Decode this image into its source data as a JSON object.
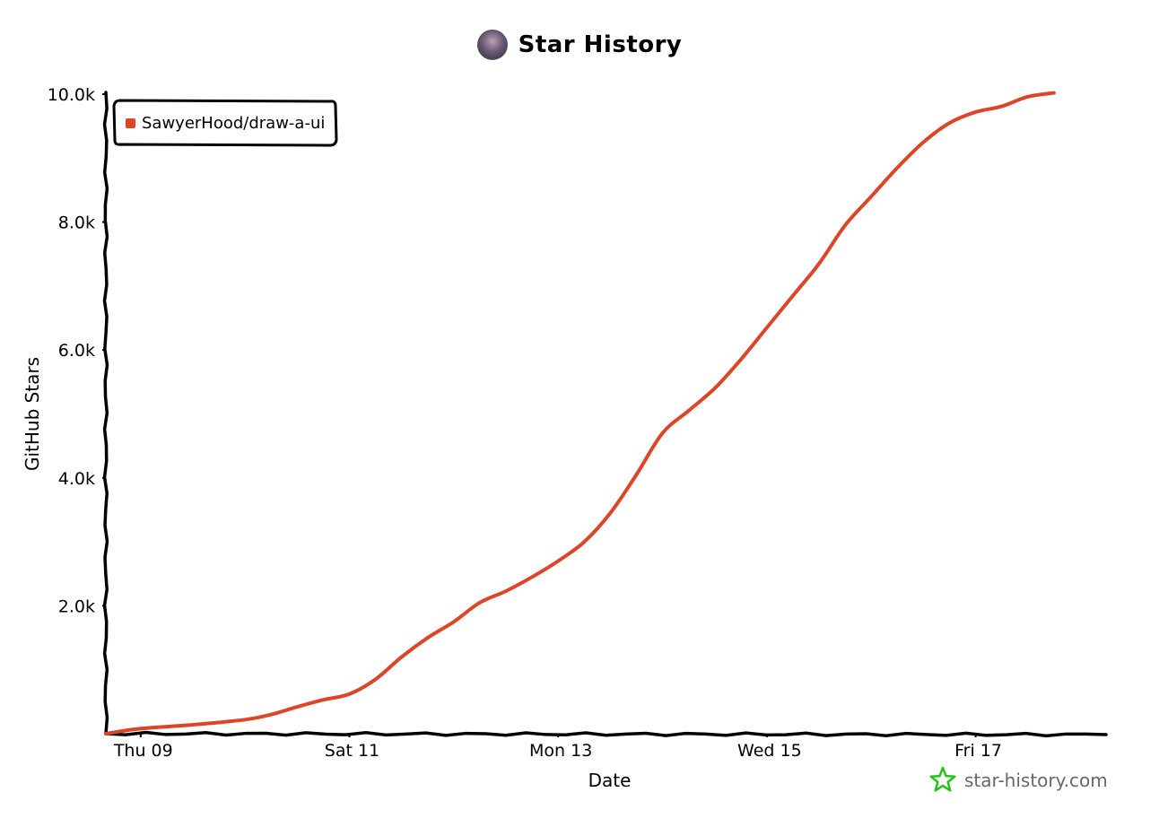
{
  "header": {
    "title": "Star History"
  },
  "colors": {
    "series": "#dd4528",
    "axis": "#000000",
    "watermark_icon": "#22c41a",
    "watermark_text": "#666666"
  },
  "watermark": {
    "text": "star-history.com",
    "icon": "star-outline-icon"
  },
  "chart_data": {
    "type": "line",
    "title": "Star History",
    "xlabel": "Date",
    "ylabel": "GitHub Stars",
    "ylim": [
      0,
      10000
    ],
    "xlim": [
      "2023-11-08T16:00",
      "2023-11-18T06:00"
    ],
    "y_ticks": [
      {
        "value": 2000,
        "label": "2.0k"
      },
      {
        "value": 4000,
        "label": "4.0k"
      },
      {
        "value": 6000,
        "label": "6.0k"
      },
      {
        "value": 8000,
        "label": "8.0k"
      },
      {
        "value": 10000,
        "label": "10.0k"
      }
    ],
    "x_ticks": [
      {
        "value": "2023-11-09T00:00",
        "label": "Thu 09"
      },
      {
        "value": "2023-11-11T00:00",
        "label": "Sat 11"
      },
      {
        "value": "2023-11-13T00:00",
        "label": "Mon 13"
      },
      {
        "value": "2023-11-15T00:00",
        "label": "Wed 15"
      },
      {
        "value": "2023-11-17T00:00",
        "label": "Fri 17"
      }
    ],
    "legend": {
      "position": "top-left"
    },
    "series": [
      {
        "name": "SawyerHood/draw-a-ui",
        "points": [
          [
            "2023-11-08T16:00",
            0
          ],
          [
            "2023-11-09T00:00",
            80
          ],
          [
            "2023-11-09T12:00",
            140
          ],
          [
            "2023-11-10T00:00",
            220
          ],
          [
            "2023-11-10T06:00",
            300
          ],
          [
            "2023-11-10T12:00",
            420
          ],
          [
            "2023-11-10T18:00",
            530
          ],
          [
            "2023-11-11T00:00",
            620
          ],
          [
            "2023-11-11T06:00",
            850
          ],
          [
            "2023-11-11T12:00",
            1200
          ],
          [
            "2023-11-11T18:00",
            1500
          ],
          [
            "2023-11-12T00:00",
            1750
          ],
          [
            "2023-11-12T06:00",
            2050
          ],
          [
            "2023-11-12T12:00",
            2230
          ],
          [
            "2023-11-12T18:00",
            2450
          ],
          [
            "2023-11-13T00:00",
            2700
          ],
          [
            "2023-11-13T06:00",
            3000
          ],
          [
            "2023-11-13T12:00",
            3450
          ],
          [
            "2023-11-13T18:00",
            4050
          ],
          [
            "2023-11-14T00:00",
            4700
          ],
          [
            "2023-11-14T06:00",
            5050
          ],
          [
            "2023-11-14T12:00",
            5400
          ],
          [
            "2023-11-14T18:00",
            5850
          ],
          [
            "2023-11-15T00:00",
            6350
          ],
          [
            "2023-11-15T06:00",
            6850
          ],
          [
            "2023-11-15T12:00",
            7350
          ],
          [
            "2023-11-15T18:00",
            7950
          ],
          [
            "2023-11-16T00:00",
            8400
          ],
          [
            "2023-11-16T06:00",
            8850
          ],
          [
            "2023-11-16T12:00",
            9250
          ],
          [
            "2023-11-16T18:00",
            9550
          ],
          [
            "2023-11-17T00:00",
            9720
          ],
          [
            "2023-11-17T06:00",
            9810
          ],
          [
            "2023-11-17T12:00",
            9960
          ],
          [
            "2023-11-17T18:00",
            10020
          ]
        ]
      }
    ]
  }
}
